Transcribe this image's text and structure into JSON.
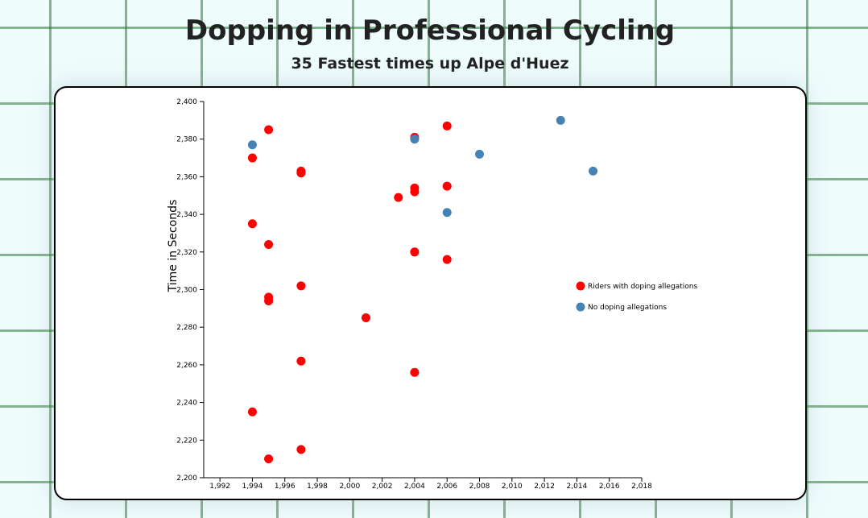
{
  "chart_data": {
    "type": "scatter",
    "title": "Dopping in Professional Cycling",
    "subtitle": "35 Fastest times up Alpe d'Huez",
    "xlabel": "",
    "ylabel": "Time in Seconds",
    "xlim": [
      1991,
      2018
    ],
    "ylim": [
      2200,
      2400
    ],
    "xticks": [
      "1,992",
      "1,994",
      "1,996",
      "1,998",
      "2,000",
      "2,002",
      "2,004",
      "2,006",
      "2,008",
      "2,010",
      "2,012",
      "2,014",
      "2,016",
      "2,018"
    ],
    "yticks": [
      "2,200",
      "2,220",
      "2,240",
      "2,260",
      "2,280",
      "2,300",
      "2,320",
      "2,340",
      "2,360",
      "2,380",
      "2,400"
    ],
    "legend_position": "right",
    "series": [
      {
        "name": "Riders with doping allegations",
        "color": "#ff0000",
        "points": [
          {
            "x": 1995,
            "y": 2210
          },
          {
            "x": 1997,
            "y": 2215
          },
          {
            "x": 1994,
            "y": 2235
          },
          {
            "x": 2004,
            "y": 2256
          },
          {
            "x": 1997,
            "y": 2262
          },
          {
            "x": 2001,
            "y": 2285
          },
          {
            "x": 1995,
            "y": 2294
          },
          {
            "x": 1995,
            "y": 2296
          },
          {
            "x": 1997,
            "y": 2302
          },
          {
            "x": 2006,
            "y": 2316
          },
          {
            "x": 2004,
            "y": 2320
          },
          {
            "x": 1995,
            "y": 2324
          },
          {
            "x": 1994,
            "y": 2335
          },
          {
            "x": 2003,
            "y": 2349
          },
          {
            "x": 2004,
            "y": 2352
          },
          {
            "x": 2004,
            "y": 2354
          },
          {
            "x": 2006,
            "y": 2355
          },
          {
            "x": 1997,
            "y": 2362
          },
          {
            "x": 1997,
            "y": 2363
          },
          {
            "x": 1994,
            "y": 2370
          },
          {
            "x": 2004,
            "y": 2381
          },
          {
            "x": 1995,
            "y": 2385
          },
          {
            "x": 2006,
            "y": 2387
          }
        ]
      },
      {
        "name": "No doping allegations",
        "color": "#4682b4",
        "points": [
          {
            "x": 2006,
            "y": 2341
          },
          {
            "x": 2015,
            "y": 2363
          },
          {
            "x": 2008,
            "y": 2372
          },
          {
            "x": 1994,
            "y": 2377
          },
          {
            "x": 2004,
            "y": 2380
          },
          {
            "x": 2013,
            "y": 2390
          }
        ]
      }
    ]
  }
}
